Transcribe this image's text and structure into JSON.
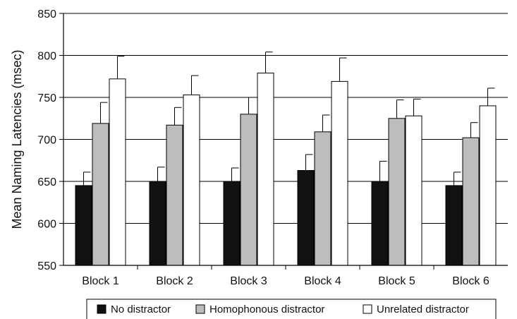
{
  "chart_data": {
    "type": "bar",
    "title": "",
    "xlabel": "",
    "ylabel": "Mean Naming Latencies (msec)",
    "ylim": [
      550,
      850
    ],
    "yticks": [
      550,
      600,
      650,
      700,
      750,
      800,
      850
    ],
    "grid": true,
    "legend_position": "bottom",
    "categories": [
      "Block 1",
      "Block 2",
      "Block 3",
      "Block 4",
      "Block 5",
      "Block 6"
    ],
    "series": [
      {
        "name": "No distractor",
        "color": "#111111",
        "values": [
          645,
          650,
          650,
          663,
          650,
          645
        ],
        "error": [
          16,
          17,
          16,
          19,
          24,
          16
        ]
      },
      {
        "name": "Homophonous distractor",
        "color": "#bdbdbd",
        "values": [
          719,
          717,
          730,
          709,
          725,
          702
        ],
        "error": [
          25,
          21,
          20,
          20,
          22,
          18
        ]
      },
      {
        "name": "Unrelated distractor",
        "color": "#ffffff",
        "values": [
          772,
          753,
          779,
          769,
          728,
          740
        ],
        "error": [
          27,
          23,
          25,
          28,
          20,
          21
        ]
      }
    ]
  }
}
